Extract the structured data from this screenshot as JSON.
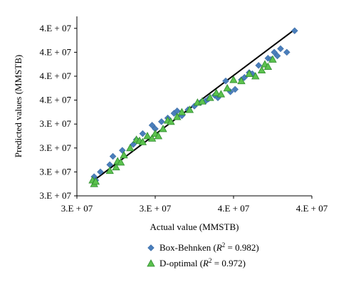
{
  "chart_data": {
    "type": "scatter",
    "title": "",
    "xlabel": "Actual value (MMSTB)",
    "ylabel": "Predicted values (MMSTB)",
    "xlim": [
      30000000,
      45000000
    ],
    "ylim": [
      30000000,
      45000000
    ],
    "x_ticks": [
      {
        "value": 30000000,
        "label": "3.E + 07"
      },
      {
        "value": 35000000,
        "label": "3.E + 07"
      },
      {
        "value": 40000000,
        "label": "4.E + 07"
      },
      {
        "value": 45000000,
        "label": "4.E + 07"
      }
    ],
    "y_ticks": [
      {
        "value": 30000000,
        "label": "3.E + 07"
      },
      {
        "value": 32000000,
        "label": "3.E + 07"
      },
      {
        "value": 34000000,
        "label": "3.E + 07"
      },
      {
        "value": 36000000,
        "label": "3.E + 07"
      },
      {
        "value": 38000000,
        "label": "4.E + 07"
      },
      {
        "value": 40000000,
        "label": "4.E + 07"
      },
      {
        "value": 42000000,
        "label": "4.E + 07"
      },
      {
        "value": 44000000,
        "label": "4.E + 07"
      }
    ],
    "grid": false,
    "legend_position": "bottom",
    "fit_line": {
      "x": [
        31200000,
        43800000
      ],
      "y": [
        31400000,
        43800000
      ],
      "color": "#000000"
    },
    "series": [
      {
        "name": "Box-Behnken",
        "r2_value": "0.982",
        "marker": "diamond",
        "color": "#4a7ebb",
        "x": [
          31.1,
          31.2,
          31.5,
          32.1,
          32.3,
          32.9,
          33.6,
          33.8,
          34.2,
          34.8,
          35.0,
          35.4,
          35.8,
          36.2,
          36.4,
          36.7,
          37.1,
          37.5,
          37.9,
          38.2,
          38.4,
          38.8,
          39.0,
          39.5,
          39.8,
          40.1,
          40.5,
          40.7,
          41.0,
          41.2,
          41.6,
          42.2,
          42.4,
          42.6,
          42.8,
          43.0,
          43.4,
          43.9
        ],
        "y": [
          31.6,
          31.3,
          32.0,
          32.6,
          33.3,
          33.8,
          34.3,
          34.7,
          35.2,
          35.9,
          35.6,
          36.2,
          36.5,
          36.9,
          37.1,
          36.7,
          37.2,
          37.5,
          37.8,
          37.9,
          38.1,
          38.4,
          38.2,
          39.6,
          38.7,
          38.9,
          39.7,
          39.9,
          40.3,
          40.2,
          40.9,
          41.5,
          41.4,
          42.0,
          41.7,
          42.3,
          42.0,
          43.8
        ]
      },
      {
        "name": "D-optimal",
        "r2_value": "0.972",
        "marker": "triangle",
        "color": "#5cc24e",
        "x": [
          31.0,
          31.1,
          31.2,
          32.1,
          32.5,
          32.6,
          32.8,
          33.0,
          33.4,
          33.8,
          34.0,
          34.2,
          34.5,
          34.8,
          35.0,
          35.2,
          35.5,
          35.8,
          36.0,
          36.4,
          36.7,
          37.2,
          37.7,
          38.0,
          38.5,
          38.9,
          39.2,
          39.6,
          40.0,
          40.5,
          41.0,
          41.4,
          41.8,
          42.0,
          42.2,
          42.5
        ],
        "y": [
          31.3,
          31.0,
          31.2,
          32.1,
          32.4,
          32.9,
          32.8,
          33.4,
          34.0,
          34.7,
          34.6,
          34.5,
          35.0,
          34.8,
          35.2,
          35.0,
          35.6,
          36.3,
          36.2,
          36.6,
          37.0,
          37.2,
          37.8,
          37.9,
          38.2,
          38.6,
          38.5,
          39.0,
          39.7,
          39.6,
          40.2,
          40.0,
          40.5,
          41.0,
          40.8,
          41.4
        ]
      }
    ]
  }
}
